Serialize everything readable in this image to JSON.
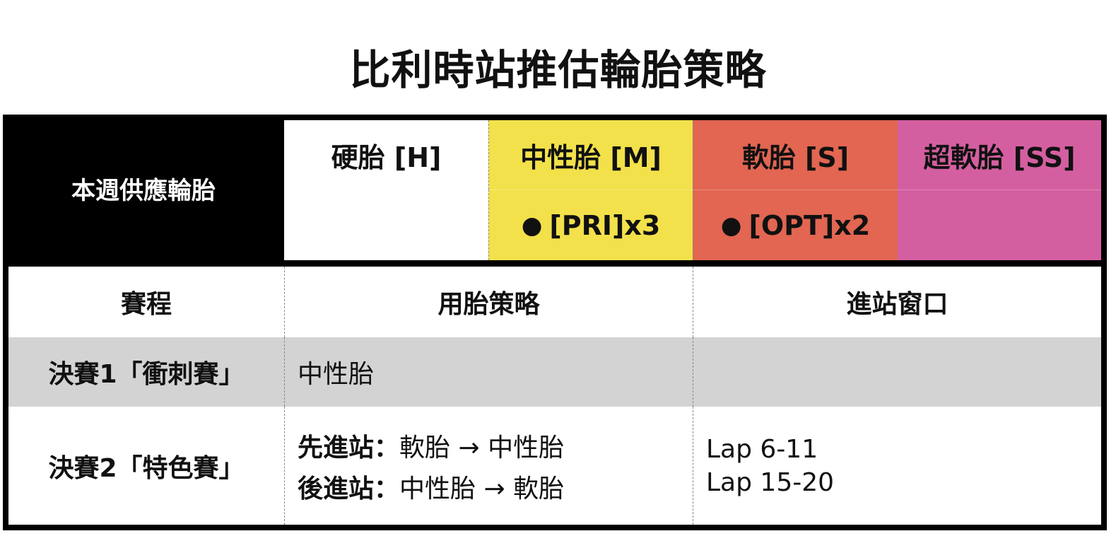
{
  "title": "比利時站推估輪胎策略",
  "supply": {
    "label": "本週供應輪胎",
    "tires": [
      {
        "name": "硬胎 [H]",
        "allocation": "",
        "color": "#ffffff"
      },
      {
        "name": "中性胎 [M]",
        "allocation": "[PRI]x3",
        "color": "#f2e14a"
      },
      {
        "name": "軟胎 [S]",
        "allocation": "[OPT]x2",
        "color": "#e26651"
      },
      {
        "name": "超軟胎 [SS]",
        "allocation": "",
        "color": "#d45fa0"
      }
    ],
    "dot": "●"
  },
  "table": {
    "headers": [
      "賽程",
      "用胎策略",
      "進站窗口"
    ],
    "rows": [
      {
        "race": "決賽1「衝刺賽」",
        "strategy": [
          {
            "label": "",
            "text": "中性胎"
          }
        ],
        "windows": []
      },
      {
        "race": "決賽2「特色賽」",
        "strategy": [
          {
            "label": "先進站：",
            "text": "軟胎 → 中性胎"
          },
          {
            "label": "後進站：",
            "text": "中性胎 → 軟胎"
          }
        ],
        "windows": [
          "Lap 6-11",
          "Lap 15-20"
        ]
      }
    ]
  }
}
